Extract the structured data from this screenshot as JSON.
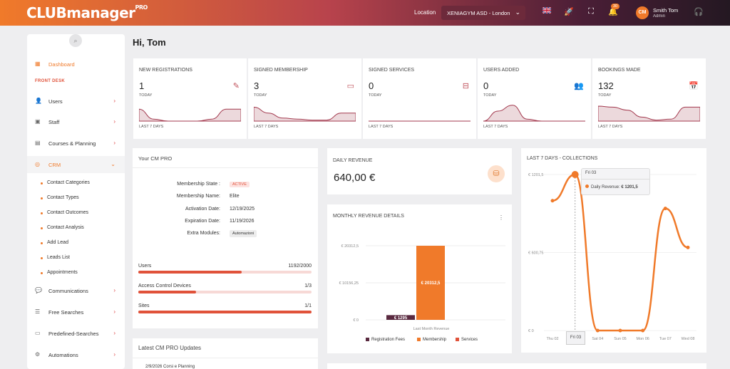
{
  "topbar": {
    "logo": "CLUBmanager",
    "logo_suffix": "PRO",
    "location_label": "Location",
    "location_value": "XENIAGYM ASD - London",
    "notifications": "30",
    "avatar_initials": "CM",
    "user_name": "Smith Tom",
    "user_role": "Admin"
  },
  "sidebar": {
    "dashboard": "Dashboard",
    "section": "FRONT DESK",
    "items": [
      {
        "label": "Users",
        "icon": "user-icon"
      },
      {
        "label": "Staff",
        "icon": "badge-icon"
      },
      {
        "label": "Courses & Planning",
        "icon": "calendar-icon"
      },
      {
        "label": "CRM",
        "icon": "target-icon"
      }
    ],
    "crm_sub": [
      "Contact Categories",
      "Contact Types",
      "Contact Outcomes",
      "Contact Analysis",
      "Add Lead",
      "Leads List",
      "Appointments"
    ],
    "more": [
      {
        "label": "Communications",
        "icon": "chat-icon"
      },
      {
        "label": "Free Searches",
        "icon": "search-list-icon"
      },
      {
        "label": "Predefined-Searches",
        "icon": "folder-search-icon"
      },
      {
        "label": "Automations",
        "icon": "gear-icon"
      }
    ]
  },
  "greeting": "Hi, Tom",
  "stats": [
    {
      "title": "NEW REGISTRATIONS",
      "value": "1",
      "sub": "TODAY",
      "foot": "LAST 7 DAYS",
      "icon": "edit-icon",
      "trend": [
        0.6,
        0.1,
        0,
        0,
        0,
        0.1,
        0.6,
        0.6
      ]
    },
    {
      "title": "SIGNED MEMBERSHIP",
      "value": "3",
      "sub": "TODAY",
      "foot": "LAST 7 DAYS",
      "icon": "id-card-icon",
      "trend": [
        0.7,
        0.4,
        0.15,
        0.1,
        0.05,
        0.05,
        0.4,
        0.4
      ]
    },
    {
      "title": "SIGNED SERVICES",
      "value": "0",
      "sub": "TODAY",
      "foot": "LAST 7 DAYS",
      "icon": "hand-box-icon",
      "trend": [
        0,
        0,
        0,
        0,
        0,
        0,
        0,
        0
      ]
    },
    {
      "title": "USERS ADDED",
      "value": "0",
      "sub": "TODAY",
      "foot": "LAST 7 DAYS",
      "icon": "users-icon",
      "trend": [
        0,
        0.5,
        0.8,
        0.1,
        0,
        0,
        0,
        0
      ]
    },
    {
      "title": "BOOKINGS MADE",
      "value": "132",
      "sub": "TODAY",
      "foot": "LAST 7 DAYS",
      "icon": "calendar-clock-icon",
      "trend": [
        0.75,
        0.7,
        0.55,
        0.2,
        0.05,
        0.1,
        0.7,
        0.7
      ]
    }
  ],
  "cmpro": {
    "title": "Your CM PRO",
    "rows": [
      {
        "k": "Membership State :",
        "v": "ACTIVE"
      },
      {
        "k": "Membership Name:",
        "v": "Elite"
      },
      {
        "k": "Activation Date:",
        "v": "12/19/2025"
      },
      {
        "k": "Expiration Date:",
        "v": "11/19/2026"
      },
      {
        "k": "Extra Modules:",
        "v": "Automazioni"
      }
    ],
    "bars": [
      {
        "label": "Users",
        "value": "1192/2000",
        "fraction": 0.596
      },
      {
        "label": "Access Control Devices",
        "value": "1/3",
        "fraction": 0.333
      },
      {
        "label": "Sites",
        "value": "1/1",
        "fraction": 1.0
      }
    ]
  },
  "updates": {
    "title": "Latest CM PRO Updates",
    "first_item": "2/9/2026  Corsi e Planning"
  },
  "daily_revenue": {
    "title": "DAILY REVENUE",
    "value": "640,00 €"
  },
  "monthly": {
    "title": "MONTHLY REVENUE DETAILS",
    "menu": "⋮",
    "legend": [
      "Registration Fees",
      "Membership",
      "Services"
    ]
  },
  "collections": {
    "title": "LAST 7 DAYS - COLLECTIONS",
    "tooltip_date": "Fri 03",
    "tooltip_label": "Daily Revenue:",
    "tooltip_value": "€ 1201,5",
    "crosshair_label": "Fri 03"
  },
  "chart_data": [
    {
      "type": "bar",
      "title": "MONTHLY REVENUE DETAILS",
      "categories": [
        "Last Month Revenue"
      ],
      "series": [
        {
          "name": "Registration Fees",
          "values": [
            1295
          ],
          "label": "€ 1295"
        },
        {
          "name": "Membership",
          "values": [
            20312.5
          ],
          "label": "€ 20312,5"
        },
        {
          "name": "Services",
          "values": [
            0
          ]
        }
      ],
      "yticks": [
        "€ 0",
        "€ 10156,25",
        "€ 20312,5"
      ],
      "ylim": [
        0,
        20312.5
      ],
      "colors": {
        "Registration Fees": "#5a2a40",
        "Membership": "#f07a2a",
        "Services": "#e0523a"
      }
    },
    {
      "type": "line",
      "title": "LAST 7 DAYS - COLLECTIONS",
      "x": [
        "Thu 02",
        "Fri 03",
        "Sat 04",
        "Sun 05",
        "Mon 06",
        "Tue 07",
        "Wed 08"
      ],
      "series": [
        {
          "name": "Daily Revenue",
          "values": [
            1000,
            1201.5,
            0,
            0,
            0,
            940,
            640
          ]
        }
      ],
      "yticks": [
        "€ 0",
        "€ 600,75",
        "€ 1201,5"
      ],
      "ylim": [
        0,
        1201.5
      ],
      "color": "#f07a2a"
    }
  ]
}
